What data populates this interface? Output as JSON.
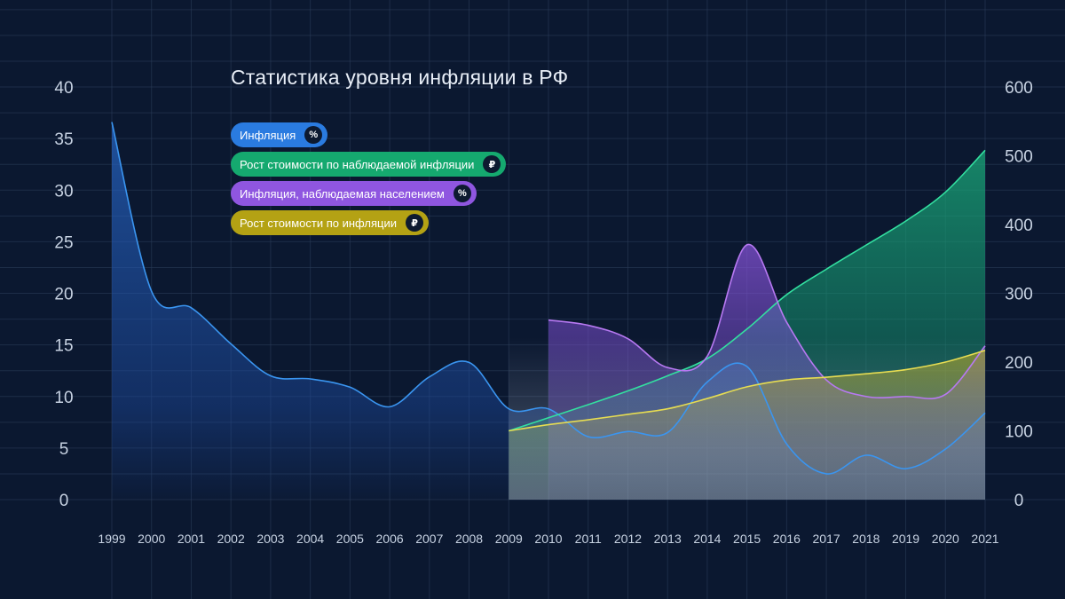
{
  "chart_data": {
    "type": "area",
    "title": "Статистика уровня инфляции в РФ",
    "years": [
      "1999",
      "2000",
      "2001",
      "2002",
      "2003",
      "2004",
      "2005",
      "2006",
      "2007",
      "2008",
      "2009",
      "2010",
      "2011",
      "2012",
      "2013",
      "2014",
      "2015",
      "2016",
      "2017",
      "2018",
      "2019",
      "2020",
      "2021"
    ],
    "left_axis": {
      "ticks": [
        "0",
        "5",
        "10",
        "15",
        "20",
        "25",
        "30",
        "35",
        "40"
      ],
      "range": [
        0,
        40
      ],
      "unit": "%"
    },
    "right_axis": {
      "ticks": [
        "0",
        "100",
        "200",
        "300",
        "400",
        "500",
        "600"
      ],
      "range": [
        0,
        600
      ],
      "unit": "₽"
    },
    "series": [
      {
        "name": "Инфляция",
        "badge": "%",
        "axis": "left",
        "color": "#2a8bf0",
        "start_year": 1999,
        "values": [
          36.6,
          20.2,
          18.6,
          15.1,
          12.0,
          11.7,
          10.9,
          9.0,
          11.9,
          13.3,
          8.8,
          8.8,
          6.1,
          6.6,
          6.5,
          11.4,
          12.9,
          5.4,
          2.5,
          4.3,
          3.0,
          4.9,
          8.4
        ]
      },
      {
        "name": "Рост стоимости по наблюдаемой инфляции",
        "badge": "₽",
        "axis": "right",
        "color": "#1fbf7f",
        "start_year": 2009,
        "values": [
          100,
          119,
          138,
          158,
          180,
          205,
          248,
          298,
          335,
          370,
          405,
          447,
          508
        ]
      },
      {
        "name": "Инфляция, наблюдаемая населением",
        "badge": "%",
        "axis": "left",
        "color": "#9b5de5",
        "start_year": 2010,
        "values": [
          17.4,
          16.9,
          15.6,
          12.8,
          13.9,
          24.7,
          17.2,
          11.6,
          10.0,
          10.0,
          10.2,
          14.9
        ]
      },
      {
        "name": "Рост стоимости по инфляции",
        "badge": "₽",
        "axis": "right",
        "color": "#c9b81a",
        "start_year": 2009,
        "values": [
          100,
          109,
          116,
          124,
          132,
          147,
          164,
          174,
          178,
          183,
          189,
          200,
          217
        ]
      }
    ],
    "legend_position": "top-left",
    "grid": true
  }
}
